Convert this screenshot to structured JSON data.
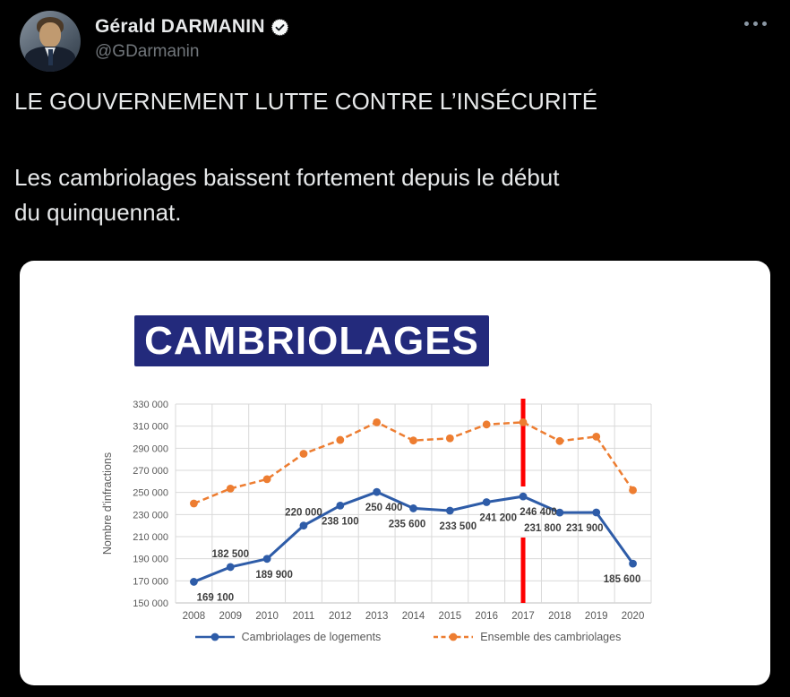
{
  "header": {
    "name": "Gérald DARMANIN",
    "handle": "@GDarmanin",
    "verified_icon": "verified-badge",
    "more_icon": "more-ellipsis"
  },
  "tweet": {
    "line1": "LE GOUVERNEMENT LUTTE CONTRE L’INSÉCURITÉ",
    "line2": "Les cambriolages baissent fortement depuis le début",
    "line3": "du quinquennat."
  },
  "chart_data": {
    "type": "line",
    "title": "CAMBRIOLAGES",
    "ylabel": "Nombre d'infractions",
    "ylim": [
      150000,
      330000
    ],
    "ytick_step": 20000,
    "grid": true,
    "legend_position": "bottom",
    "categories": [
      2008,
      2009,
      2010,
      2011,
      2012,
      2013,
      2014,
      2015,
      2016,
      2017,
      2018,
      2019,
      2020
    ],
    "series": [
      {
        "name": "Cambriolages de logements",
        "color": "#2E5CA8",
        "style": "solid",
        "values": [
          169100,
          182500,
          189900,
          220000,
          238100,
          250400,
          235600,
          233500,
          241200,
          246400,
          231800,
          231900,
          185600
        ],
        "data_labels": [
          "169 100",
          "182 500",
          "189 900",
          "220 000",
          "238 100",
          "250 400",
          "235 600",
          "233 500",
          "241 200",
          "246 400",
          "231 800",
          "231 900",
          "185 600"
        ]
      },
      {
        "name": "Ensemble des cambriolages",
        "color": "#ED7D31",
        "style": "dashed",
        "values": [
          240000,
          253500,
          262000,
          285000,
          297500,
          313500,
          297000,
          299000,
          311500,
          313500,
          296500,
          300500,
          252000
        ],
        "data_labels": []
      }
    ],
    "annotations": [
      {
        "type": "vline",
        "x": 2017,
        "color": "#FE0000"
      }
    ]
  },
  "colors": {
    "page_background": "#000000",
    "card_background": "#ffffff",
    "title_box": "#232A7C",
    "text_primary": "#E7E9EA",
    "text_secondary": "#71767B",
    "axis_text": "#595959",
    "data_label_text": "#3F3F3F",
    "gridline": "#D9D9D9"
  }
}
